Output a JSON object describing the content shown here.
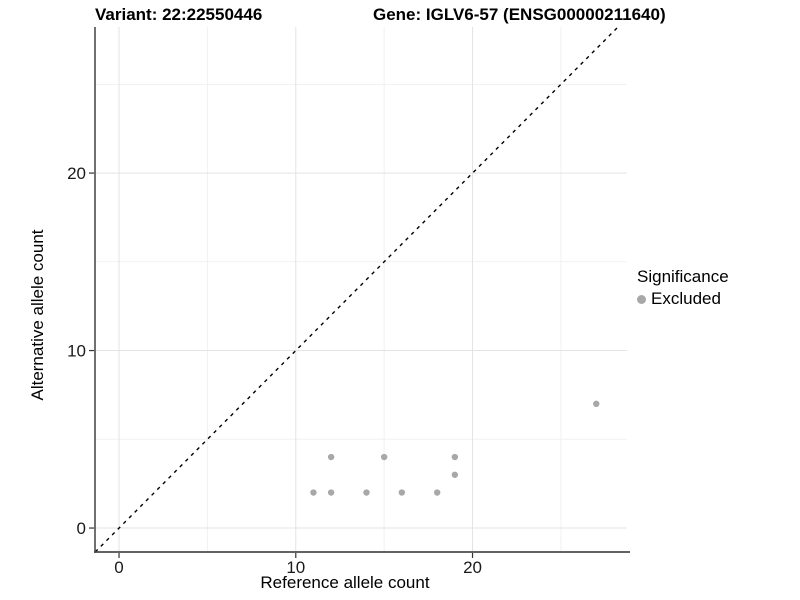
{
  "page": {
    "background": "#ffffff"
  },
  "header": {
    "variant_title": "Variant: 22:22550446",
    "gene_title": "Gene: IGLV6-57 (ENSG00000211640)"
  },
  "chart_data": {
    "type": "scatter",
    "xlabel": "Reference allele count",
    "ylabel": "Alternative allele count",
    "xlim": [
      -1.36,
      28.74
    ],
    "ylim": [
      -1.35,
      28.23
    ],
    "x_major_ticks": [
      0,
      10,
      20
    ],
    "x_minor_ticks": [
      5,
      15,
      25
    ],
    "y_major_ticks": [
      0,
      10,
      20
    ],
    "y_minor_ticks": [
      5,
      15,
      25
    ],
    "grid": true,
    "legend_position": "right",
    "identity_line": {
      "style": "dashed",
      "from": -1.35,
      "to": 28.23
    },
    "series": [
      {
        "name": "Excluded",
        "color": "#a8a8a8",
        "points": [
          [
            11,
            2
          ],
          [
            12,
            2
          ],
          [
            12,
            4
          ],
          [
            14,
            2
          ],
          [
            15,
            4
          ],
          [
            16,
            2
          ],
          [
            18,
            2
          ],
          [
            19,
            3
          ],
          [
            19,
            4
          ],
          [
            27,
            7
          ]
        ]
      }
    ],
    "legend": {
      "title": "Significance",
      "entries": [
        {
          "label": "Excluded",
          "color": "#a8a8a8"
        }
      ]
    },
    "colors": {
      "grid_major": "#e3e3e3",
      "grid_minor": "#f1f1f1",
      "axis_line_x": "#4d4d4d",
      "axis_line_y": "#333333",
      "tick_mark": "#333333",
      "tick_label": "#1a1a1a",
      "identity_line": "#000000",
      "title_text": "#000000"
    }
  }
}
